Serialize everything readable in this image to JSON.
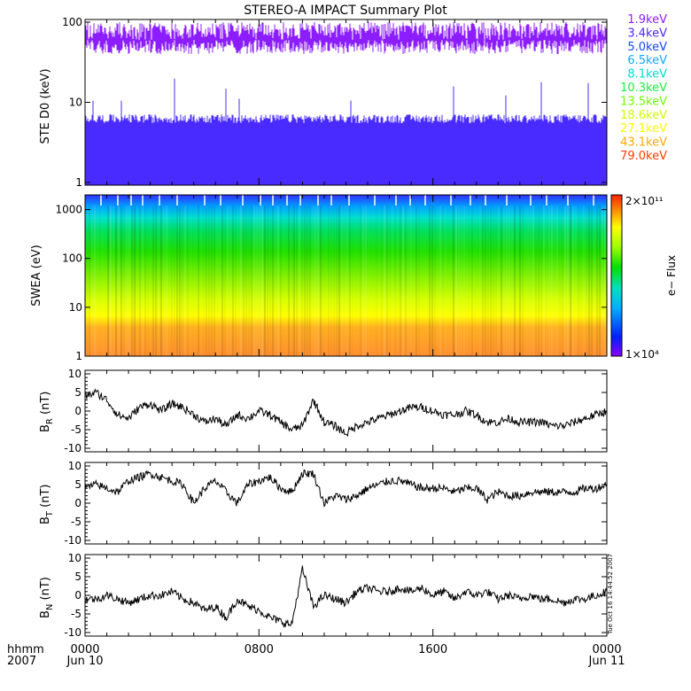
{
  "title": "STEREO-A IMPACT Summary Plot",
  "timestamp_label": "Tue Oct 16 14:44:52 2007",
  "colors": {
    "channels": [
      "#8c1dff",
      "#4a2bff",
      "#1546ff",
      "#11a8ff",
      "#00dcd0",
      "#19f040",
      "#6fff00",
      "#d0ff00",
      "#ffff00",
      "#ffaa00",
      "#ff3a00"
    ],
    "trace": "#000000",
    "axes": "#000000"
  },
  "chart_data": [
    {
      "type": "line",
      "panel": "STE D0",
      "ylabel": "STE D0 (keV)",
      "yscale": "log",
      "ylim": [
        1,
        100
      ],
      "y_ticks": [
        "1",
        "10",
        "100"
      ],
      "legend_placement": "right",
      "series": [
        {
          "name": "1.9keV",
          "baseline": 90,
          "spread": 70
        },
        {
          "name": "3.4keV",
          "baseline": 5.5,
          "spread": 9
        },
        {
          "name": "5.0keV",
          "baseline": 4.5,
          "spread": 7
        },
        {
          "name": "6.5keV",
          "baseline": 3.2,
          "spread": 4
        },
        {
          "name": "8.1keV",
          "baseline": 2.6,
          "spread": 3
        },
        {
          "name": "10.3keV",
          "baseline": 2.2,
          "spread": 2.5
        },
        {
          "name": "13.5keV",
          "baseline": 1.8,
          "spread": 2
        },
        {
          "name": "18.6keV",
          "baseline": 1.6,
          "spread": 1.8
        },
        {
          "name": "27.1keV",
          "baseline": 1.4,
          "spread": 1.6
        },
        {
          "name": "43.1keV",
          "baseline": 1.2,
          "spread": 1.3
        },
        {
          "name": "79.0keV",
          "baseline": 1.1,
          "spread": 1.2
        }
      ]
    },
    {
      "type": "heatmap",
      "panel": "SWEA",
      "ylabel": "SWEA (eV)",
      "yscale": "log",
      "ylim": [
        1,
        2000
      ],
      "y_ticks": [
        "1",
        "10",
        "100",
        "1000"
      ],
      "colorbar": {
        "label": "e− Flux",
        "min_label": "1×10⁴",
        "max_label": "2×10¹¹",
        "min": 10000,
        "max": 200000000000
      }
    },
    {
      "type": "line",
      "panel": "B_R",
      "ylabel_main": "B",
      "ylabel_sub": "R",
      "ylabel_unit": " (nT)",
      "ylim": [
        -10,
        10
      ],
      "y_ticks": [
        "10",
        "5",
        "0",
        "-5",
        "-10"
      ],
      "x": [
        0,
        30,
        60,
        90,
        120,
        150,
        180,
        210,
        240,
        270,
        300,
        330,
        360,
        390,
        420,
        450,
        480,
        510,
        540,
        570,
        600,
        630,
        660,
        690,
        720,
        750,
        780,
        810,
        840,
        870,
        900,
        930,
        960,
        990,
        1020,
        1050,
        1080,
        1110,
        1140,
        1170,
        1200,
        1230,
        1260,
        1290,
        1320,
        1350,
        1380,
        1410,
        1440
      ],
      "values": [
        4,
        5,
        3,
        -1,
        -2,
        1,
        2,
        0,
        2,
        1,
        -1,
        -3,
        -2,
        -4,
        -1,
        -2,
        0,
        -1,
        -3,
        -5,
        -4,
        3,
        -3,
        -4,
        -6,
        -4,
        -3,
        -2,
        -1,
        0,
        1,
        1,
        0,
        -1,
        -1,
        0,
        -1,
        -3,
        -3,
        -2,
        -3,
        -3,
        -3,
        -4,
        -4,
        -3,
        -2,
        -1,
        0
      ]
    },
    {
      "type": "line",
      "panel": "B_T",
      "ylabel_main": "B",
      "ylabel_sub": "T",
      "ylabel_unit": " (nT)",
      "ylim": [
        -10,
        10
      ],
      "y_ticks": [
        "10",
        "5",
        "0",
        "-5",
        "-10"
      ],
      "x": [
        0,
        30,
        60,
        90,
        120,
        150,
        180,
        210,
        240,
        270,
        300,
        330,
        360,
        390,
        420,
        450,
        480,
        510,
        540,
        570,
        600,
        630,
        660,
        690,
        720,
        750,
        780,
        810,
        840,
        870,
        900,
        930,
        960,
        990,
        1020,
        1050,
        1080,
        1110,
        1140,
        1170,
        1200,
        1230,
        1260,
        1290,
        1320,
        1350,
        1380,
        1410,
        1440
      ],
      "values": [
        4,
        5,
        4,
        3,
        6,
        7,
        8,
        7,
        6,
        5,
        0,
        4,
        6,
        3,
        0,
        5,
        6,
        7,
        4,
        3,
        8,
        8,
        0,
        2,
        1,
        2,
        4,
        5,
        6,
        6,
        5,
        4,
        4,
        4,
        3,
        4,
        4,
        1,
        3,
        2,
        2,
        3,
        3,
        3,
        3,
        3,
        4,
        4,
        5
      ]
    },
    {
      "type": "line",
      "panel": "B_N",
      "ylabel_main": "B",
      "ylabel_sub": "N",
      "ylabel_unit": " (nT)",
      "ylim": [
        -10,
        10
      ],
      "y_ticks": [
        "10",
        "5",
        "0",
        "-5",
        "-10"
      ],
      "x": [
        0,
        30,
        60,
        90,
        120,
        150,
        180,
        210,
        240,
        270,
        300,
        330,
        360,
        390,
        420,
        450,
        480,
        510,
        540,
        570,
        600,
        630,
        660,
        690,
        720,
        750,
        780,
        810,
        840,
        870,
        900,
        930,
        960,
        990,
        1020,
        1050,
        1080,
        1110,
        1140,
        1170,
        1200,
        1230,
        1260,
        1290,
        1320,
        1350,
        1380,
        1410,
        1440
      ],
      "values": [
        -1,
        -1,
        0,
        -1,
        -2,
        -1,
        0,
        0,
        1,
        -1,
        -2,
        -4,
        -3,
        -6,
        -1,
        -3,
        -4,
        -6,
        -7,
        -8,
        7,
        -3,
        0,
        -1,
        -2,
        1,
        2,
        1,
        1,
        2,
        1,
        2,
        0,
        1,
        -1,
        1,
        0,
        1,
        -1,
        0,
        -1,
        0,
        -1,
        -1,
        -2,
        -1,
        -1,
        0,
        1
      ]
    }
  ],
  "x_axis": {
    "left_labels": [
      "hhmm",
      "2007"
    ],
    "ticks": [
      {
        "minute": 0,
        "time": "0000",
        "date": "Jun 10"
      },
      {
        "minute": 480,
        "time": "0800",
        "date": ""
      },
      {
        "minute": 960,
        "time": "1600",
        "date": ""
      },
      {
        "minute": 1440,
        "time": "0000",
        "date": "Jun 11"
      }
    ],
    "xlim": [
      0,
      1440
    ]
  }
}
